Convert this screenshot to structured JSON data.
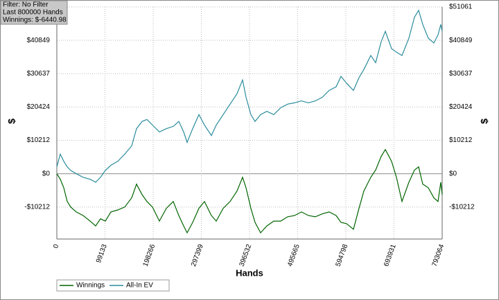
{
  "chart_data": {
    "type": "line",
    "info": [
      "Filter: No Filter",
      "Last  800000 Hands",
      "Winnings: $-6440.98"
    ],
    "xlabel": "Hands",
    "ylabel": "$",
    "y2label": "$",
    "x": [
      0,
      7132,
      14264,
      21396,
      28528,
      39939,
      54203,
      68467,
      79878,
      89863,
      99848,
      111259,
      125523,
      139787,
      154051,
      164036,
      175447,
      185432,
      196843,
      211107,
      225371,
      239635,
      251046,
      261031,
      268163,
      279574,
      292412,
      303823,
      318087,
      328072,
      342336,
      356600,
      370864,
      382275,
      389407,
      399392,
      407950,
      419362,
      432199,
      446463,
      460727,
      474991,
      489255,
      503519,
      517783,
      532047,
      546311,
      560575,
      574839,
      584824,
      596235,
      610499,
      621911,
      631896,
      646160,
      656145,
      667556,
      676114,
      688952,
      698937,
      710348,
      724612,
      736023,
      744582,
      753140,
      764551,
      775963,
      784521,
      790227,
      793064
    ],
    "series": [
      {
        "name": "Winnings",
        "color": "#006400",
        "values": [
          0,
          -1700,
          -4300,
          -8500,
          -10200,
          -11700,
          -12800,
          -14500,
          -16000,
          -13800,
          -14500,
          -11700,
          -11100,
          -10200,
          -7400,
          -3200,
          -6400,
          -8500,
          -10200,
          -14500,
          -10600,
          -8500,
          -12800,
          -16000,
          -18100,
          -14900,
          -10600,
          -8500,
          -12800,
          -14500,
          -10600,
          -8500,
          -5300,
          -1100,
          -4300,
          -10600,
          -14900,
          -18100,
          -16000,
          -14500,
          -14500,
          -13200,
          -12800,
          -11700,
          -12800,
          -13200,
          -12300,
          -11700,
          -12800,
          -14900,
          -15300,
          -17000,
          -10600,
          -5300,
          -1100,
          1100,
          5300,
          7400,
          3800,
          -1100,
          -8500,
          -2600,
          1100,
          2100,
          -3200,
          -4300,
          -7400,
          -8500,
          -2600,
          -6441
        ]
      },
      {
        "name": "All-In EV",
        "color": "#2a8c9c",
        "values": [
          2100,
          6000,
          3800,
          2100,
          1000,
          0,
          -1100,
          -1700,
          -2600,
          -1100,
          1000,
          2600,
          3800,
          6000,
          8500,
          13800,
          16000,
          16600,
          14900,
          12800,
          13800,
          14500,
          16000,
          12800,
          9600,
          13800,
          18100,
          14900,
          11700,
          14900,
          18100,
          21300,
          24500,
          28700,
          23400,
          18100,
          16000,
          18100,
          19100,
          18100,
          20200,
          21300,
          21700,
          22300,
          21700,
          22300,
          23400,
          25500,
          26600,
          29800,
          27700,
          25500,
          29400,
          31900,
          36200,
          34000,
          40400,
          43600,
          38300,
          37200,
          36200,
          41500,
          47900,
          50000,
          45700,
          41500,
          40000,
          42500,
          45700,
          43600
        ]
      }
    ],
    "xlim": [
      0,
      793064
    ],
    "xticks": [
      0,
      99133,
      198266,
      297399,
      396532,
      495665,
      594798,
      693931,
      793064
    ],
    "ylim": [
      -20000,
      51061
    ],
    "yticks": [
      {
        "value": -10212,
        "label": "-$10212"
      },
      {
        "value": 0,
        "label": "$0"
      },
      {
        "value": 10212,
        "label": "$10212"
      },
      {
        "value": 20424,
        "label": "$20424"
      },
      {
        "value": 30637,
        "label": "$30637"
      },
      {
        "value": 40849,
        "label": "$40849"
      },
      {
        "value": 51061,
        "label": "$51061"
      }
    ],
    "grid": true
  }
}
